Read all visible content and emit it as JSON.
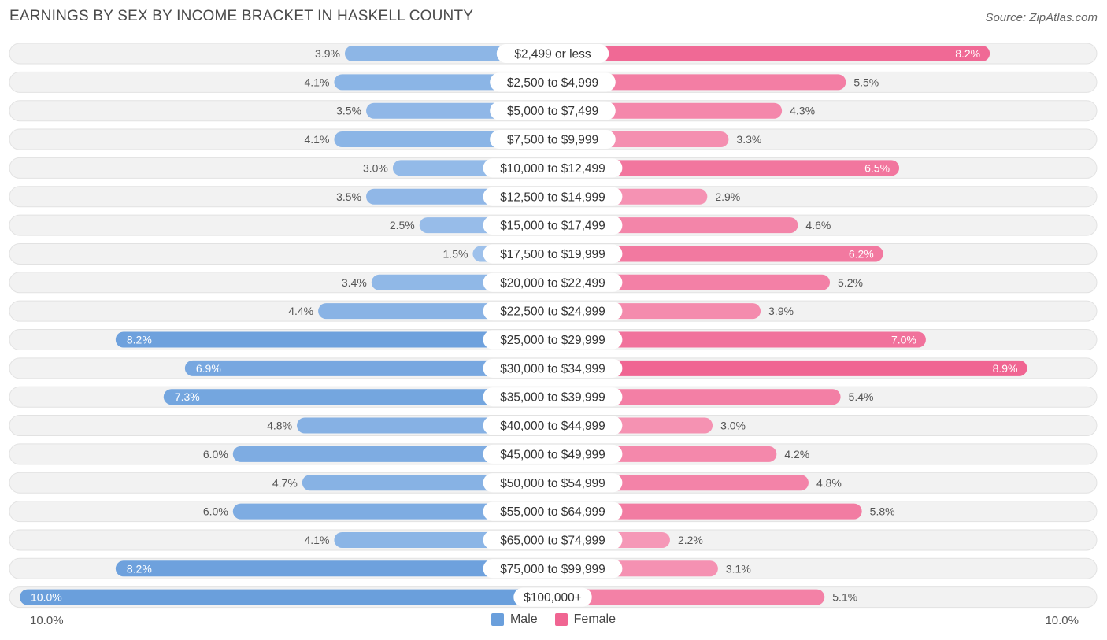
{
  "title": "EARNINGS BY SEX BY INCOME BRACKET IN HASKELL COUNTY",
  "source": "Source: ZipAtlas.com",
  "axis": {
    "left_label": "10.0%",
    "right_label": "10.0%"
  },
  "legend": {
    "male_label": "Male",
    "female_label": "Female",
    "male_color": "#6a9fdc",
    "female_color": "#f06592"
  },
  "chart_data": {
    "type": "bar",
    "orientation": "horizontal-diverging",
    "title": "EARNINGS BY SEX BY INCOME BRACKET IN HASKELL COUNTY",
    "xlim": [
      -10.0,
      10.0
    ],
    "unit": "%",
    "categories": [
      "$2,499 or less",
      "$2,500 to $4,999",
      "$5,000 to $7,499",
      "$7,500 to $9,999",
      "$10,000 to $12,499",
      "$12,500 to $14,999",
      "$15,000 to $17,499",
      "$17,500 to $19,999",
      "$20,000 to $22,499",
      "$22,500 to $24,999",
      "$25,000 to $29,999",
      "$30,000 to $34,999",
      "$35,000 to $39,999",
      "$40,000 to $44,999",
      "$45,000 to $49,999",
      "$50,000 to $54,999",
      "$55,000 to $64,999",
      "$65,000 to $74,999",
      "$75,000 to $99,999",
      "$100,000+"
    ],
    "series": [
      {
        "name": "Male",
        "values": [
          3.9,
          4.1,
          3.5,
          4.1,
          3.0,
          3.5,
          2.5,
          1.5,
          3.4,
          4.4,
          8.2,
          6.9,
          7.3,
          4.8,
          6.0,
          4.7,
          6.0,
          4.1,
          8.2,
          10.0
        ],
        "labels": [
          "3.9%",
          "4.1%",
          "3.5%",
          "4.1%",
          "3.0%",
          "3.5%",
          "2.5%",
          "1.5%",
          "3.4%",
          "4.4%",
          "8.2%",
          "6.9%",
          "7.3%",
          "4.8%",
          "6.0%",
          "4.7%",
          "6.0%",
          "4.1%",
          "8.2%",
          "10.0%"
        ]
      },
      {
        "name": "Female",
        "values": [
          8.2,
          5.5,
          4.3,
          3.3,
          6.5,
          2.9,
          4.6,
          6.2,
          5.2,
          3.9,
          7.0,
          8.9,
          5.4,
          3.0,
          4.2,
          4.8,
          5.8,
          2.2,
          3.1,
          5.1
        ],
        "labels": [
          "8.2%",
          "5.5%",
          "4.3%",
          "3.3%",
          "6.5%",
          "2.9%",
          "4.6%",
          "6.2%",
          "5.2%",
          "3.9%",
          "7.0%",
          "8.9%",
          "5.4%",
          "3.0%",
          "4.2%",
          "4.8%",
          "5.8%",
          "2.2%",
          "3.1%",
          "5.1%"
        ]
      }
    ]
  }
}
